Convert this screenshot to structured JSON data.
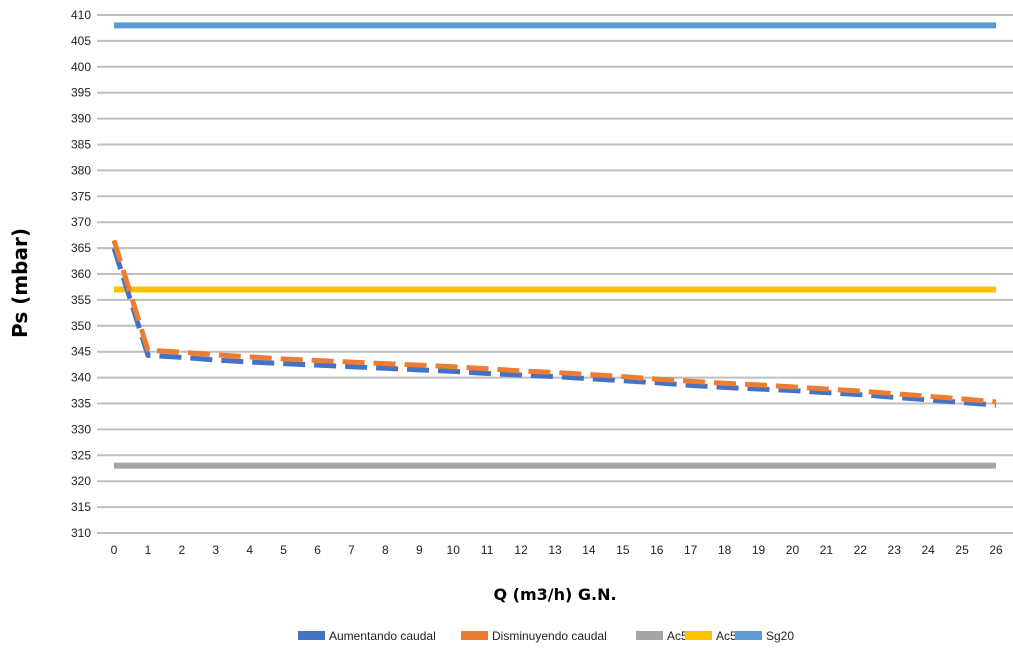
{
  "chart_data": {
    "type": "line",
    "title": "",
    "xlabel": "Q (m3/h) G.N.",
    "ylabel": "Ps (mbar)",
    "xlim": [
      0,
      26
    ],
    "ylim": [
      310,
      410
    ],
    "x_ticks": [
      0,
      1,
      2,
      3,
      4,
      5,
      6,
      7,
      8,
      9,
      10,
      11,
      12,
      13,
      14,
      15,
      16,
      17,
      18,
      19,
      20,
      21,
      22,
      23,
      24,
      25,
      26
    ],
    "y_ticks": [
      310,
      315,
      320,
      325,
      330,
      335,
      340,
      345,
      350,
      355,
      360,
      365,
      370,
      375,
      380,
      385,
      390,
      395,
      400,
      405,
      410
    ],
    "grid": "horizontal",
    "legend_position": "bottom",
    "x": [
      0,
      1,
      2,
      3,
      4,
      5,
      6,
      7,
      8,
      9,
      10,
      11,
      12,
      13,
      14,
      15,
      16,
      17,
      18,
      19,
      20,
      21,
      22,
      23,
      24,
      25,
      26
    ],
    "series": [
      {
        "name": "Aumentando caudal",
        "color": "#4472c4",
        "style": "dashed",
        "values": [
          365,
          344.3,
          343.9,
          343.4,
          343.0,
          342.7,
          342.4,
          342.1,
          341.8,
          341.5,
          341.2,
          340.8,
          340.5,
          340.2,
          339.8,
          339.4,
          339.0,
          338.5,
          338.1,
          337.8,
          337.5,
          337.1,
          336.7,
          336.2,
          335.7,
          335.2,
          334.7
        ]
      },
      {
        "name": "Disminuyendo caudal",
        "color": "#ed7d31",
        "style": "dashed",
        "values": [
          366.5,
          345.3,
          344.9,
          344.4,
          344.0,
          343.6,
          343.3,
          343.0,
          342.7,
          342.4,
          342.1,
          341.7,
          341.3,
          341.0,
          340.6,
          340.2,
          339.7,
          339.3,
          338.9,
          338.6,
          338.2,
          337.8,
          337.4,
          336.9,
          336.4,
          335.9,
          335.3
        ]
      },
      {
        "name": "Ac5",
        "color": "#a5a5a5",
        "style": "solid",
        "values": [
          323,
          323,
          323,
          323,
          323,
          323,
          323,
          323,
          323,
          323,
          323,
          323,
          323,
          323,
          323,
          323,
          323,
          323,
          323,
          323,
          323,
          323,
          323,
          323,
          323,
          323,
          323
        ]
      },
      {
        "name": "Ac5",
        "color": "#ffc000",
        "style": "solid",
        "values": [
          357,
          357,
          357,
          357,
          357,
          357,
          357,
          357,
          357,
          357,
          357,
          357,
          357,
          357,
          357,
          357,
          357,
          357,
          357,
          357,
          357,
          357,
          357,
          357,
          357,
          357,
          357
        ]
      },
      {
        "name": "Sg20",
        "color": "#5b9bd5",
        "style": "solid",
        "values": [
          408,
          408,
          408,
          408,
          408,
          408,
          408,
          408,
          408,
          408,
          408,
          408,
          408,
          408,
          408,
          408,
          408,
          408,
          408,
          408,
          408,
          408,
          408,
          408,
          408,
          408,
          408
        ]
      }
    ]
  }
}
